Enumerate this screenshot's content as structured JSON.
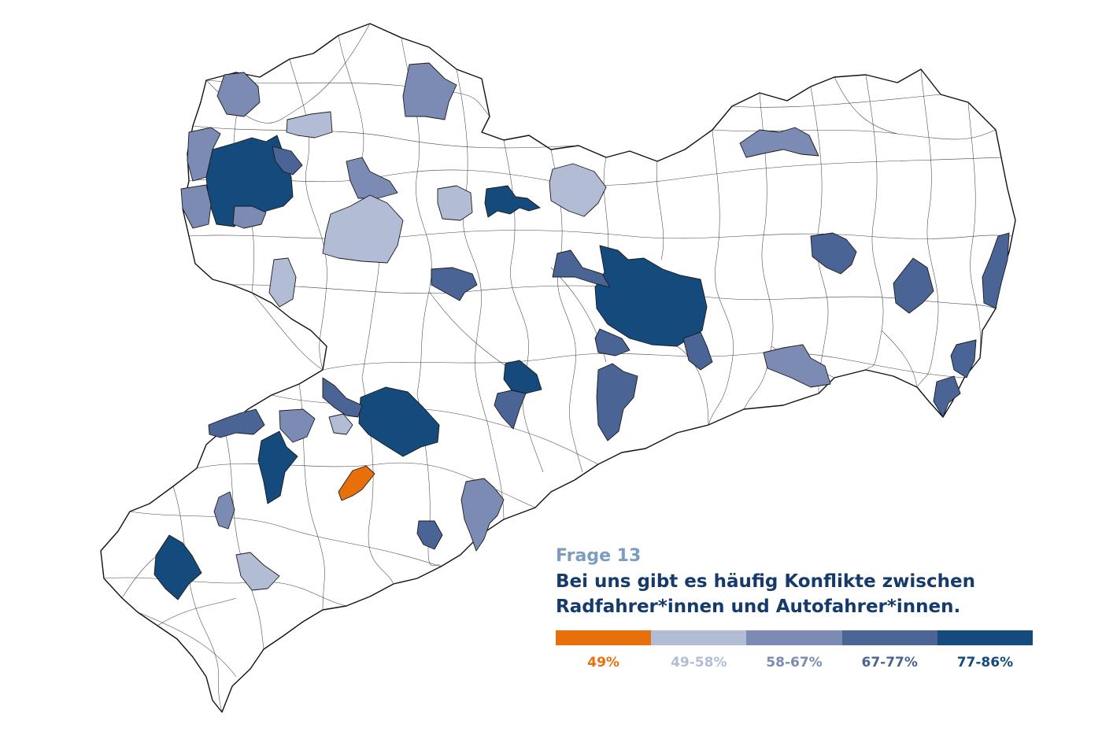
{
  "legend": {
    "question": "Frage 13",
    "statement_line1": "Bei uns gibt es häufig Konflikte zwischen",
    "statement_line2": "Radfahrer*innen und Autofahrer*innen.",
    "classes": [
      {
        "label": "49%",
        "color": "#e8700a",
        "text_color": "#e8700a"
      },
      {
        "label": "49-58%",
        "color": "#b3bcd5",
        "text_color": "#b3bcd5"
      },
      {
        "label": "58-67%",
        "color": "#7b8bb3",
        "text_color": "#7b8bb3"
      },
      {
        "label": "67-77%",
        "color": "#4a6496",
        "text_color": "#4a6496"
      },
      {
        "label": "77-86%",
        "color": "#144a7c",
        "text_color": "#144a7c"
      }
    ]
  },
  "map": {
    "base_fill": "#ffffff",
    "stroke": "#1a1a1a"
  }
}
